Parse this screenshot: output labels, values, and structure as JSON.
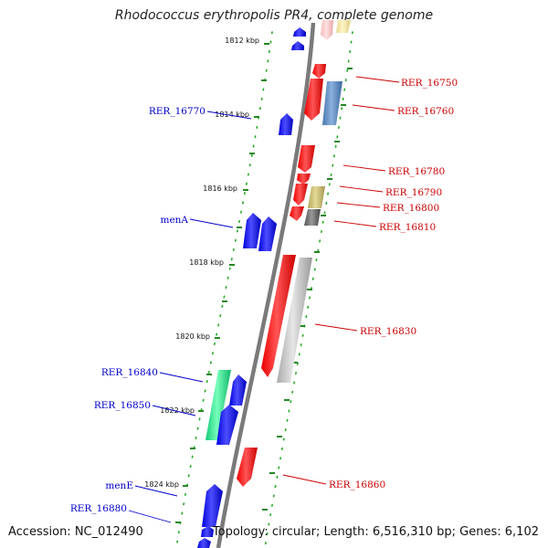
{
  "title": "Rhodococcus erythropolis PR4, complete genome",
  "footer": {
    "accession": "Accession: NC_012490",
    "topology": "Topology: circular; Length: 6,516,310 bp; Genes: 6,102"
  },
  "colors": {
    "forward_label": "#cc0000",
    "reverse_label": "#0000cc",
    "backbone": "#888888",
    "ticks": "#228822",
    "dots": "#22aa22"
  },
  "kbp_ticks": [
    "1812 kbp",
    "1814 kbp",
    "1816 kbp",
    "1818 kbp",
    "1820 kbp",
    "1822 kbp",
    "1824 kbp"
  ],
  "labels_forward": [
    "RER_16750",
    "RER_16760",
    "RER_16780",
    "RER_16790",
    "RER_16800",
    "RER_16810",
    "RER_16830",
    "RER_16860"
  ],
  "labels_reverse": [
    "RER_16770",
    "menA",
    "RER_16840",
    "RER_16850",
    "menE",
    "RER_16880"
  ]
}
